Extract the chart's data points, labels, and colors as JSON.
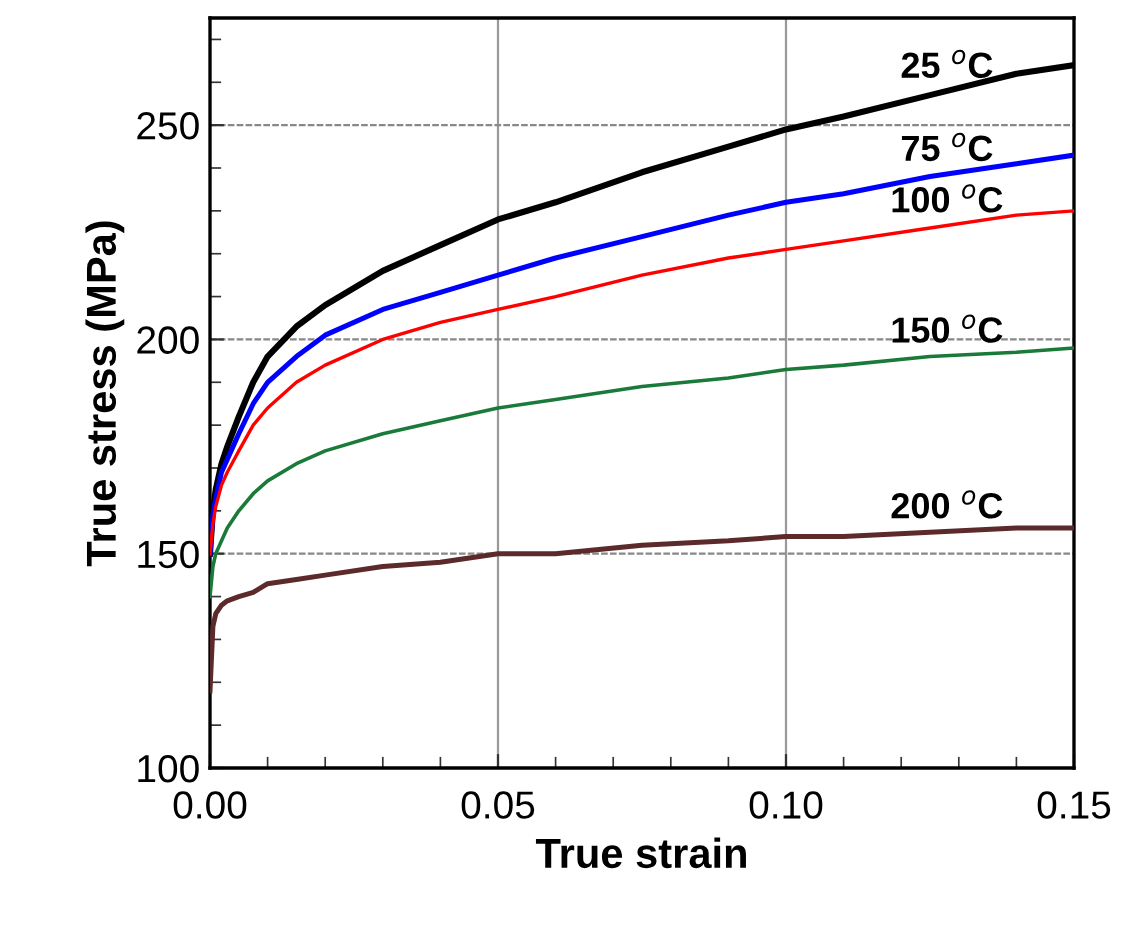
{
  "chart_data": {
    "type": "line",
    "xlabel": "True strain",
    "ylabel": "True stress (MPa)",
    "xlim": [
      0,
      0.15
    ],
    "ylim": [
      100,
      275
    ],
    "xticks": [
      {
        "value": 0,
        "label": "0.00"
      },
      0.05,
      {
        "value": 0.1,
        "label": "0.10"
      },
      0.15
    ],
    "yticks": [
      100,
      150,
      200,
      250
    ],
    "grid": true,
    "legend": false,
    "marker": "none",
    "line_style": "solid",
    "x": [
      0,
      0.0005,
      0.001,
      0.002,
      0.003,
      0.005,
      0.0075,
      0.01,
      0.015,
      0.02,
      0.03,
      0.04,
      0.05,
      0.06,
      0.075,
      0.09,
      0.1,
      0.11,
      0.125,
      0.14,
      0.15
    ],
    "series": [
      {
        "name": "25 $^{o}$C",
        "color": "#000000",
        "values": [
          150,
          160,
          165,
          171,
          175,
          182,
          190,
          196,
          203,
          208,
          216,
          222,
          228,
          232,
          239,
          245,
          249,
          252,
          257,
          262,
          264
        ]
      },
      {
        "name": "75 $^{o}$C",
        "color": "#0000ff",
        "values": [
          150,
          159,
          163,
          169,
          172,
          178,
          185,
          190,
          196,
          201,
          207,
          211,
          215,
          219,
          224,
          229,
          232,
          234,
          238,
          241,
          243
        ]
      },
      {
        "name": "100 $^{o}$C",
        "color": "#ff0000",
        "values": [
          150,
          157,
          161,
          166,
          169,
          174,
          180,
          184,
          190,
          194,
          200,
          204,
          207,
          210,
          215,
          219,
          221,
          223,
          226,
          229,
          230
        ]
      },
      {
        "name": "150 $^{o}$C",
        "color": "#1a7a3a",
        "values": [
          140,
          147,
          150,
          153,
          156,
          160,
          164,
          167,
          171,
          174,
          178,
          181,
          184,
          186,
          189,
          191,
          193,
          194,
          196,
          197,
          198
        ]
      },
      {
        "name": "200 $^{o}$C",
        "color": "#5c2a2a",
        "values": [
          118,
          133,
          136,
          138,
          139,
          140,
          141,
          143,
          144,
          145,
          147,
          148,
          150,
          150,
          152,
          153,
          154,
          154,
          155,
          156,
          156
        ]
      }
    ]
  }
}
